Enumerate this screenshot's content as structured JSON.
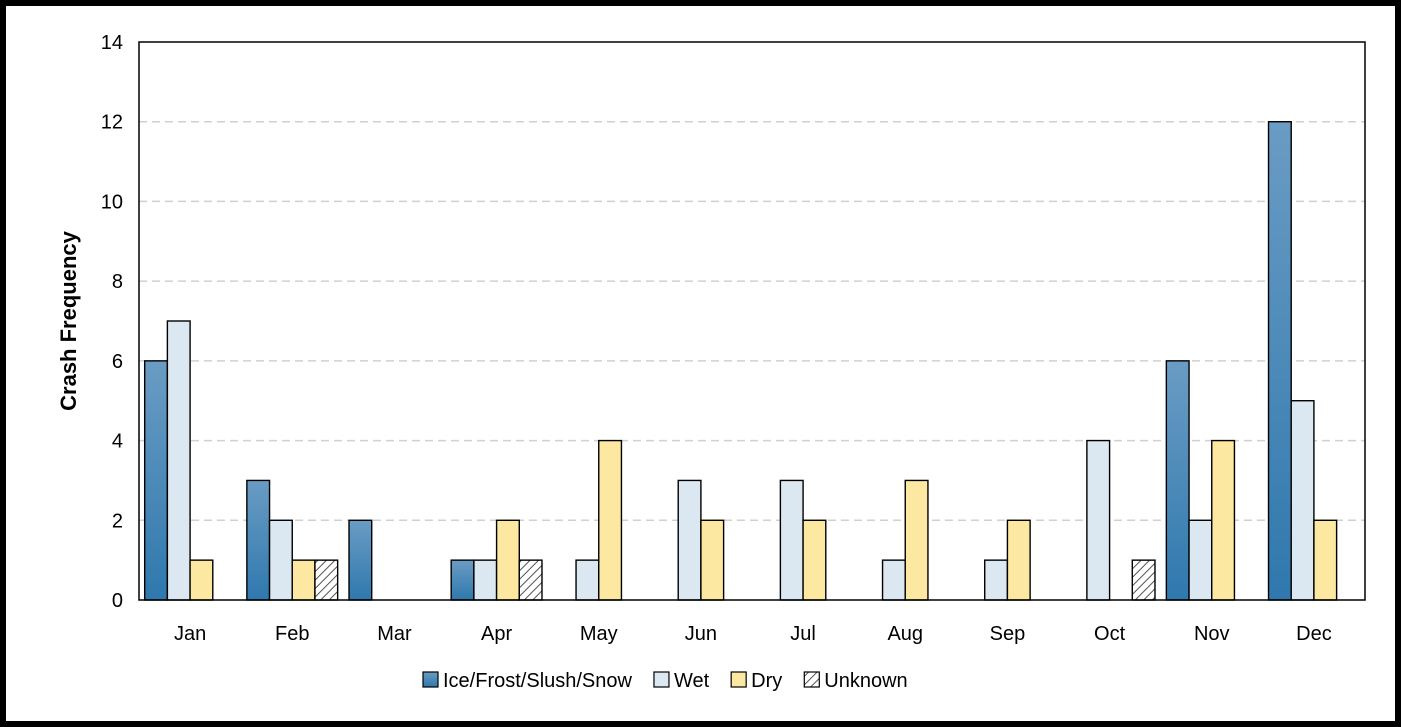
{
  "chart_data": {
    "type": "bar",
    "title": "",
    "xlabel": "",
    "ylabel": "Crash Frequency",
    "ylim": [
      0,
      14
    ],
    "yticks": [
      0,
      2,
      4,
      6,
      8,
      10,
      12,
      14
    ],
    "grid": "horizontal-dashed",
    "legend_position": "bottom",
    "categories": [
      "Jan",
      "Feb",
      "Mar",
      "Apr",
      "May",
      "Jun",
      "Jul",
      "Aug",
      "Sep",
      "Oct",
      "Nov",
      "Dec"
    ],
    "series": [
      {
        "name": "Ice/Frost/Slush/Snow",
        "values": [
          6,
          3,
          2,
          1,
          0,
          0,
          0,
          0,
          0,
          0,
          6,
          12
        ],
        "color": "#3a7fb0",
        "pattern": "gradient"
      },
      {
        "name": "Wet",
        "values": [
          7,
          2,
          0,
          1,
          1,
          3,
          3,
          1,
          1,
          4,
          2,
          5
        ],
        "color": "#dbe8f1",
        "pattern": "solid"
      },
      {
        "name": "Dry",
        "values": [
          1,
          1,
          0,
          2,
          4,
          2,
          2,
          3,
          2,
          0,
          4,
          2
        ],
        "color": "#fce8a0",
        "pattern": "solid"
      },
      {
        "name": "Unknown",
        "values": [
          0,
          1,
          0,
          1,
          0,
          0,
          0,
          0,
          0,
          1,
          0,
          0
        ],
        "color": "#ffffff",
        "pattern": "hatch"
      }
    ]
  }
}
